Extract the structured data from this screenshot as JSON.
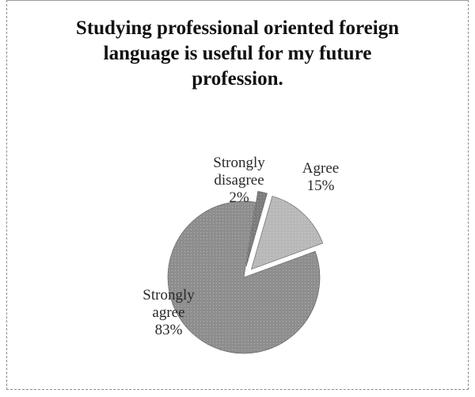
{
  "chart_data": {
    "type": "pie",
    "title": "Studying professional oriented foreign\nlanguage is useful for my future\nprofession.",
    "slices": [
      {
        "name": "Strongly agree",
        "label_lines": [
          "Strongly",
          "agree",
          "83%"
        ],
        "value": 83,
        "exploded": false,
        "color": "#8e8e8e"
      },
      {
        "name": "Strongly disagree",
        "label_lines": [
          "Strongly",
          "disagree",
          "2%"
        ],
        "value": 2,
        "exploded": true,
        "color": "#7c7c7c"
      },
      {
        "name": "Agree",
        "label_lines": [
          "Agree",
          "15%"
        ],
        "value": 15,
        "exploded": true,
        "color": "#b8b8b8"
      }
    ],
    "legend": "none",
    "data_labels": "outside-and-inside"
  },
  "colors": {
    "border": "#8a8a8a",
    "slice_edge": "#5a5a5a",
    "text": "#111111"
  }
}
